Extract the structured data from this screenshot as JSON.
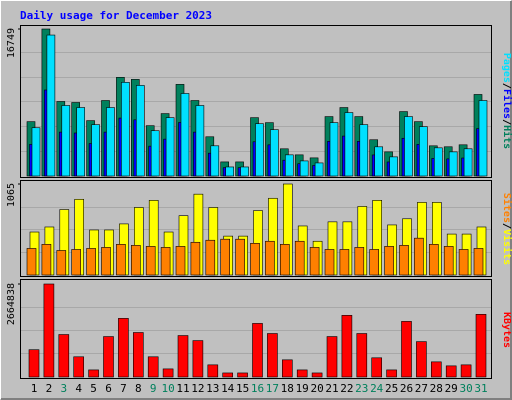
{
  "title": "Daily usage for December 2023",
  "legend_separator": "/",
  "chart_data": [
    {
      "type": "bar",
      "ylim": [
        0,
        16749
      ],
      "yticks": [
        16749
      ],
      "series": [
        {
          "name": "Hits",
          "color": "#00805c",
          "values": [
            6194,
            16749,
            8490,
            8375,
            6310,
            8600,
            11240,
            11010,
            5735,
            7110,
            10440,
            8600,
            4470,
            1605,
            1605,
            6650,
            6080,
            3100,
            2410,
            2065,
            6770,
            7800,
            6770,
            4130,
            2750,
            7340,
            6194,
            3440,
            3330,
            3555,
            9290
          ]
        },
        {
          "name": "Files",
          "color": "#0000ff",
          "values": [
            3600,
            9800,
            5000,
            4900,
            3700,
            5000,
            6600,
            6400,
            3400,
            4200,
            6100,
            5000,
            2600,
            950,
            950,
            3900,
            3550,
            1800,
            1400,
            1200,
            3950,
            4550,
            3950,
            2400,
            1600,
            4300,
            3600,
            2000,
            1950,
            2050,
            5400
          ]
        },
        {
          "name": "Pages",
          "color": "#00e0ff",
          "values": [
            5500,
            16060,
            8030,
            7800,
            5850,
            7800,
            10670,
            10320,
            5160,
            6650,
            9400,
            8030,
            3440,
            1030,
            1030,
            5960,
            5275,
            2410,
            1720,
            1490,
            6080,
            7225,
            5850,
            3325,
            2180,
            6770,
            5620,
            3210,
            2750,
            3100,
            8600
          ]
        }
      ]
    },
    {
      "type": "bar",
      "ylim": [
        0,
        1065
      ],
      "yticks": [
        1065
      ],
      "series": [
        {
          "name": "Visits",
          "color": "#ffff00",
          "values": [
            503,
            562,
            766,
            886,
            527,
            527,
            598,
            790,
            874,
            503,
            694,
            946,
            790,
            455,
            455,
            754,
            898,
            1065,
            574,
            395,
            622,
            622,
            802,
            874,
            586,
            658,
            850,
            850,
            479,
            479,
            562
          ]
        },
        {
          "name": "Sites",
          "color": "#ff8000",
          "values": [
            311,
            359,
            287,
            299,
            311,
            323,
            359,
            347,
            335,
            323,
            335,
            383,
            407,
            419,
            419,
            371,
            395,
            359,
            395,
            323,
            299,
            299,
            323,
            299,
            335,
            347,
            431,
            359,
            335,
            299,
            311
          ]
        }
      ]
    },
    {
      "type": "bar",
      "ylim": [
        0,
        2664838
      ],
      "yticks": [
        2664838
      ],
      "categories": [
        "1",
        "2",
        "3",
        "4",
        "5",
        "6",
        "7",
        "8",
        "9",
        "10",
        "11",
        "12",
        "13",
        "14",
        "15",
        "16",
        "17",
        "18",
        "19",
        "20",
        "21",
        "22",
        "23",
        "24",
        "25",
        "26",
        "27",
        "28",
        "29",
        "30",
        "31"
      ],
      "category_colors": [
        "#000000",
        "#000000",
        "#00805c",
        "#000000",
        "#000000",
        "#000000",
        "#000000",
        "#000000",
        "#00805c",
        "#00805c",
        "#000000",
        "#000000",
        "#000000",
        "#000000",
        "#000000",
        "#00805c",
        "#00805c",
        "#000000",
        "#000000",
        "#000000",
        "#000000",
        "#000000",
        "#00805c",
        "#00805c",
        "#000000",
        "#000000",
        "#000000",
        "#000000",
        "#000000",
        "#00805c",
        "#00805c"
      ],
      "series": [
        {
          "name": "KBytes",
          "color": "#ff0000",
          "values": [
            782000,
            2664838,
            1217000,
            579000,
            203000,
            1159000,
            1680000,
            1275000,
            579000,
            232000,
            1188000,
            1043000,
            348000,
            116000,
            116000,
            1535000,
            1246000,
            492000,
            203000,
            116000,
            1159000,
            1767000,
            1246000,
            550000,
            203000,
            1593000,
            1014000,
            434000,
            319000,
            348000,
            1796000
          ]
        }
      ]
    }
  ]
}
